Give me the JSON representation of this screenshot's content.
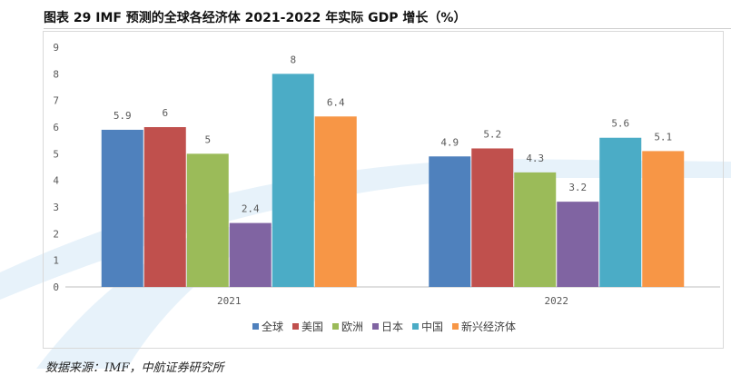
{
  "figure": {
    "title": "图表 29 IMF 预测的全球各经济体 2021-2022 年实际 GDP 增长（%）",
    "source": "数据来源：IMF，中航证券研究所"
  },
  "chart_data": {
    "type": "bar",
    "categories": [
      "2021",
      "2022"
    ],
    "series": [
      {
        "name": "全球",
        "color": "#4f81bd",
        "values": [
          5.9,
          4.9
        ]
      },
      {
        "name": "美国",
        "color": "#c0504d",
        "values": [
          6,
          5.2
        ]
      },
      {
        "name": "欧洲",
        "color": "#9bbb59",
        "values": [
          5,
          4.3
        ]
      },
      {
        "name": "日本",
        "color": "#8064a2",
        "values": [
          2.4,
          3.2
        ]
      },
      {
        "name": "中国",
        "color": "#4bacc6",
        "values": [
          8,
          5.6
        ]
      },
      {
        "name": "新兴经济体",
        "color": "#f79646",
        "values": [
          6.4,
          5.1
        ]
      }
    ],
    "data_labels": [
      [
        "5.9",
        "4.9"
      ],
      [
        "6",
        "5.2"
      ],
      [
        "5",
        "4.3"
      ],
      [
        "2.4",
        "3.2"
      ],
      [
        "8",
        "5.6"
      ],
      [
        "6.4",
        "5.1"
      ]
    ],
    "ylim": [
      0,
      9
    ],
    "yticks": [
      "0",
      "1",
      "2",
      "3",
      "4",
      "5",
      "6",
      "7",
      "8",
      "9"
    ],
    "grid": false,
    "legend_position": "bottom",
    "xlabel": "",
    "ylabel": ""
  }
}
